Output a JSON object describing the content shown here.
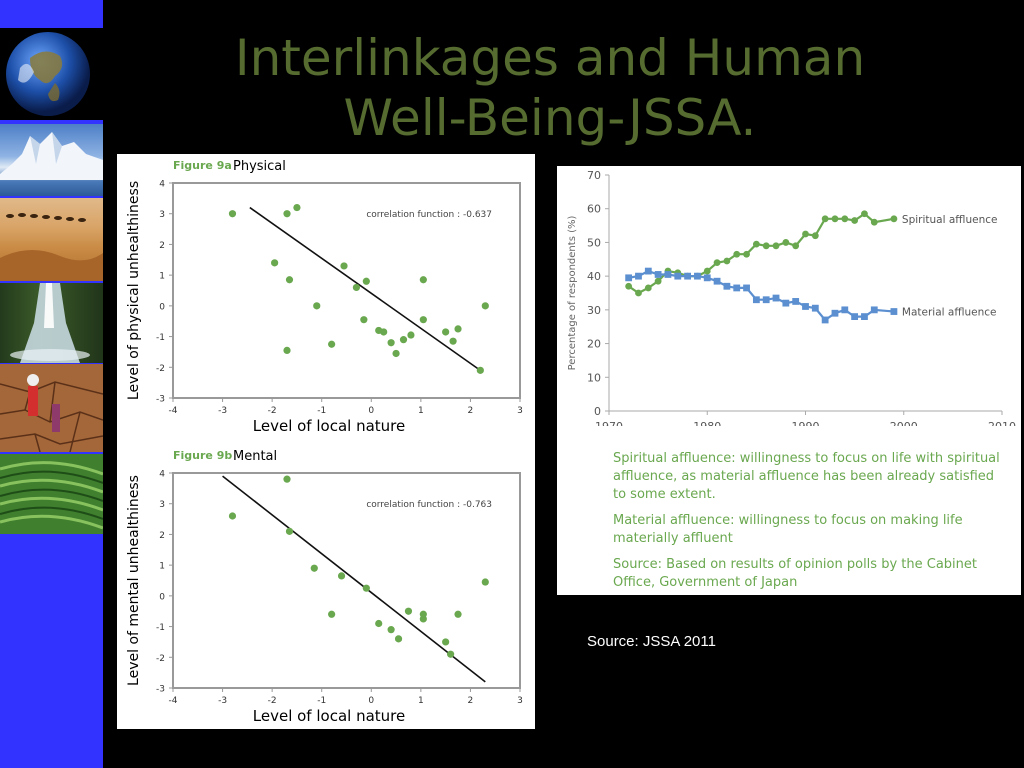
{
  "slide": {
    "title_line1": "Interlinkages and Human",
    "title_line2": "Well-Being-JSSA.",
    "source": "Source: JSSA 2011"
  },
  "sidebar": {
    "images": [
      "earth-image",
      "glacier-image",
      "desert-caravan-image",
      "waterfall-image",
      "drought-image",
      "rice-terrace-image"
    ]
  },
  "chart_data": [
    {
      "type": "scatter",
      "figure_label": "Figure 9a",
      "subtitle": "Physical",
      "xlabel": "Level of local nature",
      "ylabel": "Level of physical unhealthiness",
      "xlim": [
        -4,
        3
      ],
      "ylim": [
        -3,
        4
      ],
      "xticks": [
        "-4",
        "-3",
        "-2",
        "-1",
        "0",
        "1",
        "2",
        "3"
      ],
      "yticks": [
        "4",
        "3",
        "2",
        "1",
        "0",
        "-1",
        "-2",
        "-3"
      ],
      "annotation": "correlation function : -0.637",
      "points": [
        [
          -2.8,
          3.0
        ],
        [
          -1.7,
          3.0
        ],
        [
          -1.5,
          3.2
        ],
        [
          -1.95,
          1.4
        ],
        [
          -1.65,
          0.85
        ],
        [
          -1.1,
          0.0
        ],
        [
          -0.55,
          1.3
        ],
        [
          -0.3,
          0.6
        ],
        [
          -0.1,
          0.8
        ],
        [
          -1.7,
          -1.45
        ],
        [
          -0.8,
          -1.25
        ],
        [
          -0.15,
          -0.45
        ],
        [
          0.15,
          -0.8
        ],
        [
          0.25,
          -0.85
        ],
        [
          0.4,
          -1.2
        ],
        [
          0.5,
          -1.55
        ],
        [
          0.65,
          -1.1
        ],
        [
          0.8,
          -0.95
        ],
        [
          1.05,
          -0.45
        ],
        [
          1.05,
          0.85
        ],
        [
          1.5,
          -0.85
        ],
        [
          1.65,
          -1.15
        ],
        [
          1.75,
          -0.75
        ],
        [
          2.2,
          -2.1
        ],
        [
          2.3,
          0.0
        ]
      ],
      "trendline": [
        [
          -2.45,
          3.2
        ],
        [
          2.2,
          -2.1
        ]
      ],
      "grid": false
    },
    {
      "type": "scatter",
      "figure_label": "Figure 9b",
      "subtitle": "Mental",
      "xlabel": "Level of local nature",
      "ylabel": "Level of mental unhealthiness",
      "xlim": [
        -4,
        3
      ],
      "ylim": [
        -3,
        4
      ],
      "xticks": [
        "-4",
        "-3",
        "-2",
        "-1",
        "0",
        "1",
        "2",
        "3"
      ],
      "yticks": [
        "4",
        "3",
        "2",
        "1",
        "0",
        "-1",
        "-2",
        "-3"
      ],
      "annotation": "correlation function : -0.763",
      "points": [
        [
          -2.8,
          2.6
        ],
        [
          -1.7,
          3.8
        ],
        [
          -1.65,
          2.1
        ],
        [
          -1.15,
          0.9
        ],
        [
          -0.6,
          0.65
        ],
        [
          -0.8,
          -0.6
        ],
        [
          -0.1,
          0.25
        ],
        [
          0.15,
          -0.9
        ],
        [
          0.4,
          -1.1
        ],
        [
          0.55,
          -1.4
        ],
        [
          0.75,
          -0.5
        ],
        [
          1.05,
          -0.6
        ],
        [
          1.05,
          -0.75
        ],
        [
          1.5,
          -1.5
        ],
        [
          1.6,
          -1.9
        ],
        [
          1.75,
          -0.6
        ],
        [
          2.3,
          0.45
        ]
      ],
      "trendline": [
        [
          -3.0,
          3.9
        ],
        [
          2.3,
          -2.8
        ]
      ],
      "grid": false
    },
    {
      "type": "line",
      "ylabel": "Percentage of respondents (%)",
      "xlim": [
        1970,
        2010
      ],
      "ylim": [
        0,
        70
      ],
      "xticks": [
        "1970",
        "1980",
        "1990",
        "2000",
        "2010"
      ],
      "yticks": [
        "0",
        "10",
        "20",
        "30",
        "40",
        "50",
        "60",
        "70"
      ],
      "grid": false,
      "series": [
        {
          "name": "Spiritual affluence",
          "color": "#6aa84f",
          "marker": "circle",
          "points": [
            [
              1972,
              37
            ],
            [
              1973,
              35
            ],
            [
              1974,
              36.5
            ],
            [
              1975,
              38.5
            ],
            [
              1976,
              41.5
            ],
            [
              1977,
              41
            ],
            [
              1978,
              40
            ],
            [
              1979,
              40
            ],
            [
              1980,
              41.5
            ],
            [
              1981,
              44
            ],
            [
              1982,
              44.5
            ],
            [
              1983,
              46.5
            ],
            [
              1984,
              46.5
            ],
            [
              1985,
              49.5
            ],
            [
              1986,
              49
            ],
            [
              1987,
              49
            ],
            [
              1988,
              50
            ],
            [
              1989,
              49
            ],
            [
              1990,
              52.5
            ],
            [
              1991,
              52
            ],
            [
              1992,
              57
            ],
            [
              1993,
              57
            ],
            [
              1994,
              57
            ],
            [
              1995,
              56.5
            ],
            [
              1996,
              58.5
            ],
            [
              1997,
              56
            ],
            [
              1999,
              57
            ]
          ]
        },
        {
          "name": "Material affluence",
          "color": "#5b8fd0",
          "marker": "square",
          "points": [
            [
              1972,
              39.5
            ],
            [
              1973,
              40
            ],
            [
              1974,
              41.5
            ],
            [
              1975,
              40.5
            ],
            [
              1976,
              40.5
            ],
            [
              1977,
              40
            ],
            [
              1978,
              40
            ],
            [
              1979,
              40
            ],
            [
              1980,
              39.5
            ],
            [
              1981,
              38.5
            ],
            [
              1982,
              37
            ],
            [
              1983,
              36.5
            ],
            [
              1984,
              36.5
            ],
            [
              1985,
              33
            ],
            [
              1986,
              33
            ],
            [
              1987,
              33.5
            ],
            [
              1988,
              32
            ],
            [
              1989,
              32.5
            ],
            [
              1990,
              31
            ],
            [
              1991,
              30.5
            ],
            [
              1992,
              27
            ],
            [
              1993,
              29
            ],
            [
              1994,
              30
            ],
            [
              1995,
              28
            ],
            [
              1996,
              28
            ],
            [
              1997,
              30
            ],
            [
              1999,
              29.5
            ]
          ]
        }
      ],
      "notes": [
        "Spiritual affluence: willingness to focus on life with spiritual affluence, as material affluence has been already satisfied to some extent.",
        "Material affluence: willingness to focus on making life materially affluent",
        "Source: Based on results of opinion polls by the Cabinet Office, Government of Japan"
      ]
    }
  ]
}
